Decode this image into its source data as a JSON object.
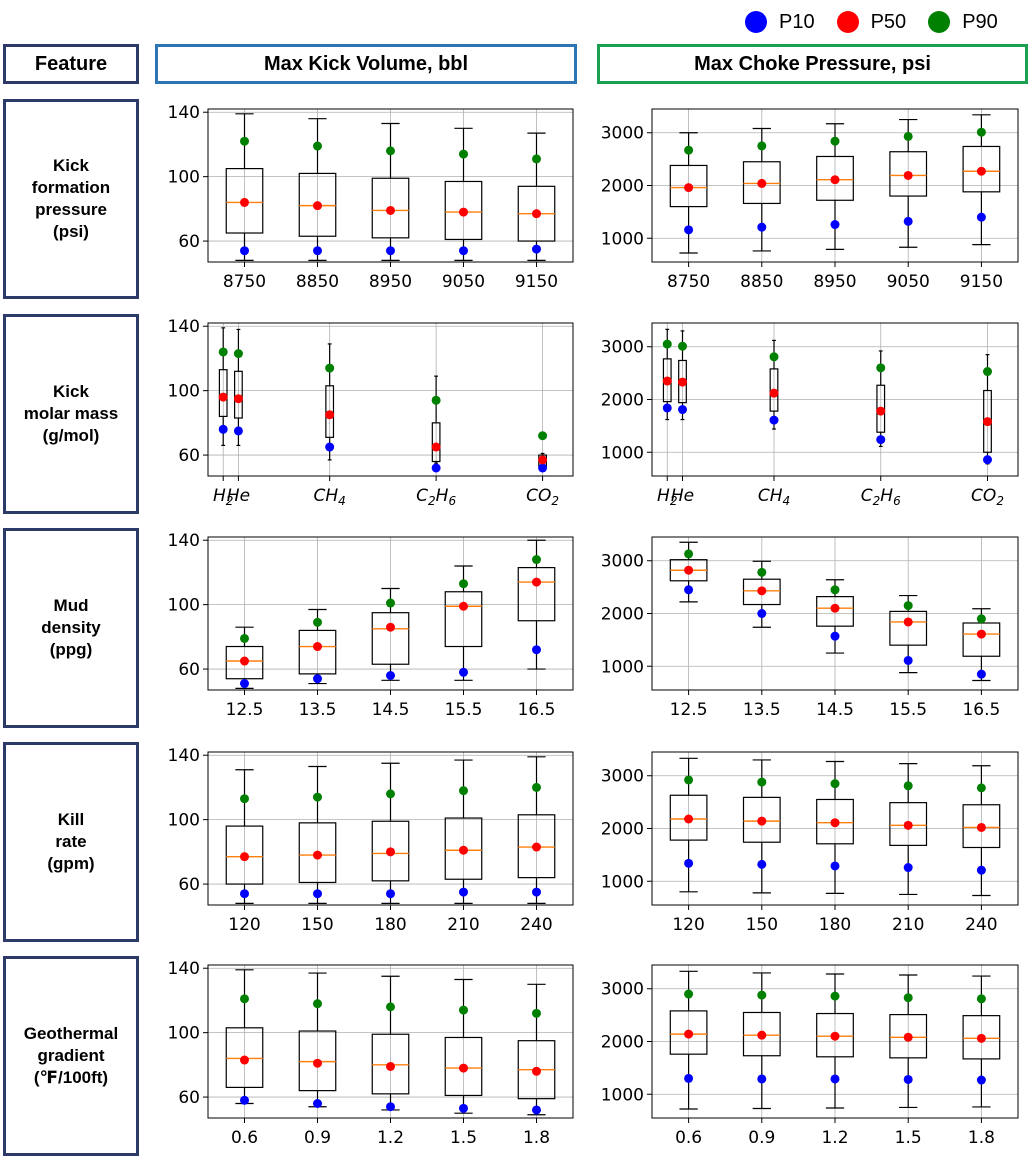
{
  "legend": [
    {
      "label": "P10",
      "color": "#0000ff"
    },
    {
      "label": "P50",
      "color": "#ff0000"
    },
    {
      "label": "P90",
      "color": "#008000"
    }
  ],
  "headers": {
    "feature": "Feature",
    "kick_volume": "Max Kick Volume, bbl",
    "choke_pressure": "Max Choke Pressure, psi"
  },
  "features": [
    {
      "lines": [
        "Kick",
        "formation",
        "pressure",
        "(psi)"
      ]
    },
    {
      "lines": [
        "Kick",
        "molar mass",
        "(g/mol)"
      ]
    },
    {
      "lines": [
        "Mud",
        "density",
        "(ppg)"
      ]
    },
    {
      "lines": [
        "Kill",
        "rate",
        "(gpm)"
      ]
    },
    {
      "lines": [
        "Geothermal",
        "gradient",
        "(℉/100ft)"
      ]
    }
  ],
  "colors": {
    "p10": "#0000ff",
    "p50": "#ff0000",
    "p90": "#008000",
    "median": "#ff7f0e",
    "grid": "#b0b0b0"
  },
  "chart_data": [
    {
      "type": "box",
      "feature": "Kick formation pressure (psi)",
      "metric": "Max Kick Volume, bbl",
      "ylim": [
        47,
        142
      ],
      "yticks": [
        60,
        100,
        140
      ],
      "grid": true,
      "categories": [
        "8750",
        "8850",
        "8950",
        "9050",
        "9150"
      ],
      "boxes": [
        {
          "whislo": 48,
          "q1": 65,
          "med": 84,
          "q3": 105,
          "whishi": 139,
          "p10": 54,
          "p50": 84,
          "p90": 122
        },
        {
          "whislo": 48,
          "q1": 63,
          "med": 82,
          "q3": 102,
          "whishi": 136,
          "p10": 54,
          "p50": 82,
          "p90": 119
        },
        {
          "whislo": 48,
          "q1": 62,
          "med": 79,
          "q3": 99,
          "whishi": 133,
          "p10": 54,
          "p50": 79,
          "p90": 116
        },
        {
          "whislo": 48,
          "q1": 61,
          "med": 78,
          "q3": 97,
          "whishi": 130,
          "p10": 54,
          "p50": 78,
          "p90": 114
        },
        {
          "whislo": 48,
          "q1": 60,
          "med": 77,
          "q3": 94,
          "whishi": 127,
          "p10": 55,
          "p50": 77,
          "p90": 111
        }
      ]
    },
    {
      "type": "box",
      "feature": "Kick formation pressure (psi)",
      "metric": "Max Choke Pressure, psi",
      "ylim": [
        550,
        3450
      ],
      "yticks": [
        1000,
        2000,
        3000
      ],
      "grid": true,
      "categories": [
        "8750",
        "8850",
        "8950",
        "9050",
        "9150"
      ],
      "boxes": [
        {
          "whislo": 720,
          "q1": 1600,
          "med": 1960,
          "q3": 2380,
          "whishi": 3000,
          "p10": 1160,
          "p50": 1960,
          "p90": 2670
        },
        {
          "whislo": 760,
          "q1": 1660,
          "med": 2040,
          "q3": 2450,
          "whishi": 3080,
          "p10": 1210,
          "p50": 2040,
          "p90": 2750
        },
        {
          "whislo": 790,
          "q1": 1720,
          "med": 2110,
          "q3": 2550,
          "whishi": 3170,
          "p10": 1260,
          "p50": 2110,
          "p90": 2840
        },
        {
          "whislo": 830,
          "q1": 1800,
          "med": 2190,
          "q3": 2640,
          "whishi": 3250,
          "p10": 1320,
          "p50": 2190,
          "p90": 2930
        },
        {
          "whislo": 880,
          "q1": 1880,
          "med": 2270,
          "q3": 2740,
          "whishi": 3340,
          "p10": 1400,
          "p50": 2270,
          "p90": 3010
        }
      ]
    },
    {
      "type": "box",
      "feature": "Kick molar mass (g/mol)",
      "metric": "Max Kick Volume, bbl",
      "ylim": [
        47,
        142
      ],
      "yticks": [
        60,
        100,
        140
      ],
      "grid": true,
      "categories": [
        "H2",
        "He",
        "CH4",
        "C2H6",
        "CO2"
      ],
      "positions": [
        2,
        4,
        16,
        30,
        44
      ],
      "xrange": [
        0,
        48
      ],
      "box_width": 1,
      "boxes": [
        {
          "whislo": 66,
          "q1": 84,
          "med": 96,
          "q3": 113,
          "whishi": 139,
          "p10": 76,
          "p50": 96,
          "p90": 124
        },
        {
          "whislo": 66,
          "q1": 83,
          "med": 95,
          "q3": 112,
          "whishi": 138,
          "p10": 75,
          "p50": 95,
          "p90": 123
        },
        {
          "whislo": 57,
          "q1": 71,
          "med": 84,
          "q3": 103,
          "whishi": 129,
          "p10": 65,
          "p50": 85,
          "p90": 114
        },
        {
          "whislo": 55,
          "q1": 56,
          "med": 65,
          "q3": 80,
          "whishi": 109,
          "p10": 52,
          "p50": 65,
          "p90": 94
        },
        {
          "whislo": 53,
          "q1": 53,
          "med": 57,
          "q3": 60,
          "whishi": 61,
          "p10": 52,
          "p50": 57,
          "p90": 72
        }
      ]
    },
    {
      "type": "box",
      "feature": "Kick molar mass (g/mol)",
      "metric": "Max Choke Pressure, psi",
      "ylim": [
        550,
        3450
      ],
      "yticks": [
        1000,
        2000,
        3000
      ],
      "grid": true,
      "categories": [
        "H2",
        "He",
        "CH4",
        "C2H6",
        "CO2"
      ],
      "positions": [
        2,
        4,
        16,
        30,
        44
      ],
      "xrange": [
        0,
        48
      ],
      "box_width": 1,
      "boxes": [
        {
          "whislo": 1620,
          "q1": 1960,
          "med": 2350,
          "q3": 2770,
          "whishi": 3330,
          "p10": 1840,
          "p50": 2350,
          "p90": 3050
        },
        {
          "whislo": 1620,
          "q1": 1940,
          "med": 2330,
          "q3": 2740,
          "whishi": 3300,
          "p10": 1810,
          "p50": 2330,
          "p90": 3010
        },
        {
          "whislo": 1440,
          "q1": 1780,
          "med": 2120,
          "q3": 2580,
          "whishi": 3120,
          "p10": 1610,
          "p50": 2120,
          "p90": 2810
        },
        {
          "whislo": 1110,
          "q1": 1380,
          "med": 1780,
          "q3": 2270,
          "whishi": 2920,
          "p10": 1240,
          "p50": 1780,
          "p90": 2600
        },
        {
          "whislo": 780,
          "q1": 1000,
          "med": 1580,
          "q3": 2170,
          "whishi": 2850,
          "p10": 860,
          "p50": 1580,
          "p90": 2530
        }
      ]
    },
    {
      "type": "box",
      "feature": "Mud density (ppg)",
      "metric": "Max Kick Volume, bbl",
      "ylim": [
        47,
        142
      ],
      "yticks": [
        60,
        100,
        140
      ],
      "grid": true,
      "categories": [
        "12.5",
        "13.5",
        "14.5",
        "15.5",
        "16.5"
      ],
      "boxes": [
        {
          "whislo": 48,
          "q1": 54,
          "med": 65,
          "q3": 74,
          "whishi": 86,
          "p10": 51,
          "p50": 65,
          "p90": 79
        },
        {
          "whislo": 51,
          "q1": 57,
          "med": 74,
          "q3": 84,
          "whishi": 97,
          "p10": 54,
          "p50": 74,
          "p90": 89
        },
        {
          "whislo": 53,
          "q1": 63,
          "med": 85,
          "q3": 95,
          "whishi": 110,
          "p10": 56,
          "p50": 86,
          "p90": 101
        },
        {
          "whislo": 53,
          "q1": 74,
          "med": 99,
          "q3": 108,
          "whishi": 124,
          "p10": 58,
          "p50": 99,
          "p90": 113
        },
        {
          "whislo": 60,
          "q1": 90,
          "med": 114,
          "q3": 123,
          "whishi": 140,
          "p10": 72,
          "p50": 114,
          "p90": 128
        }
      ]
    },
    {
      "type": "box",
      "feature": "Mud density (ppg)",
      "metric": "Max Choke Pressure, psi",
      "ylim": [
        550,
        3450
      ],
      "yticks": [
        1000,
        2000,
        3000
      ],
      "grid": true,
      "categories": [
        "12.5",
        "13.5",
        "14.5",
        "15.5",
        "16.5"
      ],
      "boxes": [
        {
          "whislo": 2220,
          "q1": 2620,
          "med": 2820,
          "q3": 3020,
          "whishi": 3350,
          "p10": 2450,
          "p50": 2820,
          "p90": 3130
        },
        {
          "whislo": 1740,
          "q1": 2170,
          "med": 2430,
          "q3": 2650,
          "whishi": 2990,
          "p10": 2000,
          "p50": 2430,
          "p90": 2780
        },
        {
          "whislo": 1250,
          "q1": 1760,
          "med": 2100,
          "q3": 2320,
          "whishi": 2640,
          "p10": 1570,
          "p50": 2100,
          "p90": 2450
        },
        {
          "whislo": 880,
          "q1": 1400,
          "med": 1840,
          "q3": 2040,
          "whishi": 2340,
          "p10": 1110,
          "p50": 1840,
          "p90": 2150
        },
        {
          "whislo": 730,
          "q1": 1190,
          "med": 1610,
          "q3": 1820,
          "whishi": 2090,
          "p10": 850,
          "p50": 1610,
          "p90": 1900
        }
      ]
    },
    {
      "type": "box",
      "feature": "Kill rate (gpm)",
      "metric": "Max Kick Volume, bbl",
      "ylim": [
        47,
        142
      ],
      "yticks": [
        60,
        100,
        140
      ],
      "grid": true,
      "categories": [
        "120",
        "150",
        "180",
        "210",
        "240"
      ],
      "boxes": [
        {
          "whislo": 48,
          "q1": 60,
          "med": 77,
          "q3": 96,
          "whishi": 131,
          "p10": 54,
          "p50": 77,
          "p90": 113
        },
        {
          "whislo": 48,
          "q1": 61,
          "med": 78,
          "q3": 98,
          "whishi": 133,
          "p10": 54,
          "p50": 78,
          "p90": 114
        },
        {
          "whislo": 48,
          "q1": 62,
          "med": 79,
          "q3": 99,
          "whishi": 135,
          "p10": 54,
          "p50": 80,
          "p90": 116
        },
        {
          "whislo": 48,
          "q1": 63,
          "med": 81,
          "q3": 101,
          "whishi": 137,
          "p10": 55,
          "p50": 81,
          "p90": 118
        },
        {
          "whislo": 48,
          "q1": 64,
          "med": 83,
          "q3": 103,
          "whishi": 139,
          "p10": 55,
          "p50": 83,
          "p90": 120
        }
      ]
    },
    {
      "type": "box",
      "feature": "Kill rate (gpm)",
      "metric": "Max Choke Pressure, psi",
      "ylim": [
        550,
        3450
      ],
      "yticks": [
        1000,
        2000,
        3000
      ],
      "grid": true,
      "categories": [
        "120",
        "150",
        "180",
        "210",
        "240"
      ],
      "boxes": [
        {
          "whislo": 800,
          "q1": 1780,
          "med": 2180,
          "q3": 2630,
          "whishi": 3330,
          "p10": 1340,
          "p50": 2180,
          "p90": 2920
        },
        {
          "whislo": 780,
          "q1": 1740,
          "med": 2140,
          "q3": 2590,
          "whishi": 3300,
          "p10": 1320,
          "p50": 2140,
          "p90": 2880
        },
        {
          "whislo": 770,
          "q1": 1710,
          "med": 2110,
          "q3": 2550,
          "whishi": 3270,
          "p10": 1290,
          "p50": 2110,
          "p90": 2850
        },
        {
          "whislo": 750,
          "q1": 1680,
          "med": 2060,
          "q3": 2490,
          "whishi": 3230,
          "p10": 1260,
          "p50": 2060,
          "p90": 2810
        },
        {
          "whislo": 730,
          "q1": 1640,
          "med": 2020,
          "q3": 2450,
          "whishi": 3190,
          "p10": 1210,
          "p50": 2020,
          "p90": 2770
        }
      ]
    },
    {
      "type": "box",
      "feature": "Geothermal gradient (℉/100ft)",
      "metric": "Max Kick Volume, bbl",
      "ylim": [
        47,
        142
      ],
      "yticks": [
        60,
        100,
        140
      ],
      "grid": true,
      "categories": [
        "0.6",
        "0.9",
        "1.2",
        "1.5",
        "1.8"
      ],
      "boxes": [
        {
          "whislo": 56,
          "q1": 66,
          "med": 84,
          "q3": 103,
          "whishi": 139,
          "p10": 58,
          "p50": 83,
          "p90": 121
        },
        {
          "whislo": 54,
          "q1": 64,
          "med": 82,
          "q3": 101,
          "whishi": 137,
          "p10": 56,
          "p50": 81,
          "p90": 118
        },
        {
          "whislo": 52,
          "q1": 62,
          "med": 80,
          "q3": 99,
          "whishi": 135,
          "p10": 54,
          "p50": 79,
          "p90": 116
        },
        {
          "whislo": 50,
          "q1": 61,
          "med": 78,
          "q3": 97,
          "whishi": 133,
          "p10": 53,
          "p50": 78,
          "p90": 114
        },
        {
          "whislo": 49,
          "q1": 59,
          "med": 77,
          "q3": 95,
          "whishi": 130,
          "p10": 52,
          "p50": 76,
          "p90": 112
        }
      ]
    },
    {
      "type": "box",
      "feature": "Geothermal gradient (℉/100ft)",
      "metric": "Max Choke Pressure, psi",
      "ylim": [
        550,
        3450
      ],
      "yticks": [
        1000,
        2000,
        3000
      ],
      "grid": true,
      "categories": [
        "0.6",
        "0.9",
        "1.2",
        "1.5",
        "1.8"
      ],
      "boxes": [
        {
          "whislo": 720,
          "q1": 1760,
          "med": 2140,
          "q3": 2580,
          "whishi": 3330,
          "p10": 1300,
          "p50": 2140,
          "p90": 2900
        },
        {
          "whislo": 730,
          "q1": 1730,
          "med": 2120,
          "q3": 2550,
          "whishi": 3300,
          "p10": 1290,
          "p50": 2120,
          "p90": 2880
        },
        {
          "whislo": 740,
          "q1": 1710,
          "med": 2100,
          "q3": 2530,
          "whishi": 3280,
          "p10": 1290,
          "p50": 2100,
          "p90": 2860
        },
        {
          "whislo": 750,
          "q1": 1690,
          "med": 2080,
          "q3": 2510,
          "whishi": 3260,
          "p10": 1280,
          "p50": 2080,
          "p90": 2830
        },
        {
          "whislo": 760,
          "q1": 1670,
          "med": 2060,
          "q3": 2490,
          "whishi": 3240,
          "p10": 1270,
          "p50": 2060,
          "p90": 2810
        }
      ]
    }
  ]
}
